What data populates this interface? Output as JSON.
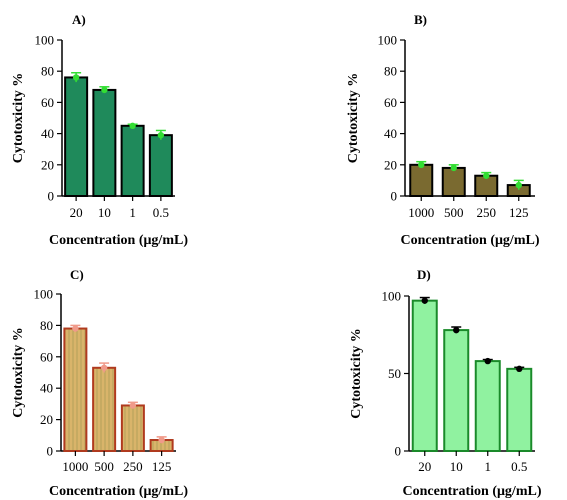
{
  "chart_data": [
    {
      "panel": "A)",
      "type": "bar",
      "categories": [
        "20",
        "10",
        "1",
        "0.5"
      ],
      "values": [
        76,
        68,
        45,
        39
      ],
      "errors": [
        3,
        2,
        1,
        3
      ],
      "ylabel": "Cytotoxicity %",
      "xlabel": "Concentration (μg/mL)",
      "ylim": [
        0,
        100
      ],
      "yticks": [
        0,
        20,
        40,
        60,
        80,
        100
      ],
      "colors": {
        "fill": "#1f8a5b",
        "stroke": "#000000",
        "error": "#33dd33"
      }
    },
    {
      "panel": "B)",
      "type": "bar",
      "categories": [
        "1000",
        "500",
        "250",
        "125"
      ],
      "values": [
        20,
        18,
        13,
        7
      ],
      "errors": [
        2,
        2,
        2,
        3
      ],
      "ylabel": "Cytotoxicity %",
      "xlabel": "Concentration (μg/mL)",
      "ylim": [
        0,
        100
      ],
      "yticks": [
        0,
        20,
        40,
        60,
        80,
        100
      ],
      "colors": {
        "fill": "#7a6a30",
        "stroke": "#000000",
        "error": "#33dd33"
      }
    },
    {
      "panel": "C)",
      "type": "bar",
      "categories": [
        "1000",
        "500",
        "250",
        "125"
      ],
      "values": [
        78,
        53,
        29,
        7
      ],
      "errors": [
        2,
        3,
        2,
        2
      ],
      "ylabel": "Cytotoxicity %",
      "xlabel": "Concentration (μg/mL)",
      "ylim": [
        0,
        100
      ],
      "yticks": [
        0,
        20,
        40,
        60,
        80,
        100
      ],
      "colors": {
        "fill": "#d9b46a",
        "stroke": "#b03a1e",
        "error": "#f09a8a"
      }
    },
    {
      "panel": "D)",
      "type": "bar",
      "categories": [
        "20",
        "10",
        "1",
        "0.5"
      ],
      "values": [
        97,
        78,
        58,
        53
      ],
      "errors": [
        2,
        2,
        1,
        1
      ],
      "ylabel": "Cytotoxicity %",
      "xlabel": "Concentration (μg/mL)",
      "ylim": [
        0,
        100
      ],
      "yticks": [
        0,
        50,
        100
      ],
      "colors": {
        "fill": "#90f2a0",
        "stroke": "#1a8a2a",
        "error": "#000000"
      }
    }
  ]
}
